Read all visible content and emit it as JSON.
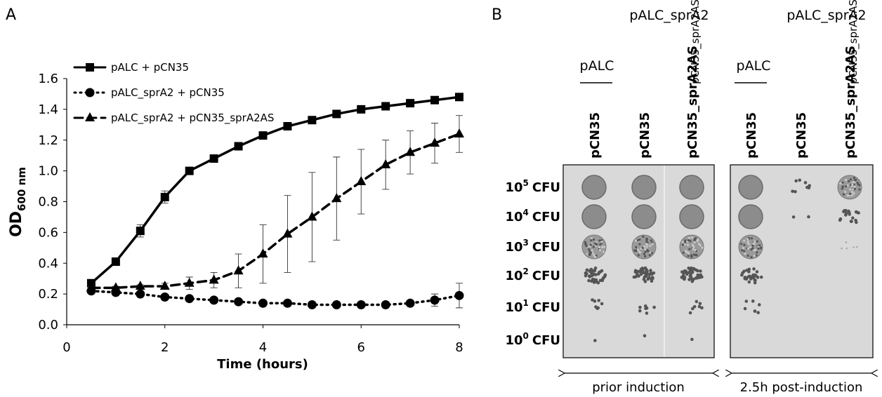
{
  "chart_data": {
    "type": "line",
    "panel_label": "A",
    "xlabel": "Time (hours)",
    "ylabel": {
      "text": "OD",
      "subscript": "600 nm"
    },
    "x": [
      0.5,
      1,
      1.5,
      2,
      2.5,
      3,
      3.5,
      4,
      4.5,
      5,
      5.5,
      6,
      6.5,
      7,
      7.5,
      8
    ],
    "xlim": [
      0,
      8
    ],
    "xticks": [
      0,
      2,
      4,
      6,
      8
    ],
    "ylim": [
      0,
      1.6
    ],
    "yticks": [
      {
        "value": 0,
        "label": "0.0"
      },
      0.2,
      0.4,
      0.6,
      0.8,
      {
        "value": 1,
        "label": "1.0"
      },
      1.2,
      1.4,
      1.6
    ],
    "series": [
      {
        "name": "pALC + pCN35",
        "color": "#000000",
        "line_style": "solid",
        "marker": "square",
        "values": [
          0.27,
          0.41,
          0.61,
          0.83,
          1.0,
          1.08,
          1.16,
          1.23,
          1.29,
          1.33,
          1.37,
          1.4,
          1.42,
          1.44,
          1.46,
          1.48
        ],
        "errors": [
          0.02,
          0.02,
          0.04,
          0.04,
          0.01,
          0.02,
          0.01,
          0.01,
          0.01,
          0.01,
          0.01,
          0.01,
          0.01,
          0.01,
          0.01,
          0.01
        ]
      },
      {
        "name": "pALC_sprA2 + pCN35",
        "color": "#000000",
        "line_style": "dotted",
        "marker": "circle",
        "values": [
          0.22,
          0.21,
          0.2,
          0.18,
          0.17,
          0.16,
          0.15,
          0.14,
          0.14,
          0.13,
          0.13,
          0.13,
          0.13,
          0.14,
          0.16,
          0.19
        ],
        "errors": [
          0.01,
          0.01,
          0.01,
          0.01,
          0.01,
          0.01,
          0.01,
          0.01,
          0.01,
          0.01,
          0.01,
          0.01,
          0.01,
          0.01,
          0.04,
          0.08
        ]
      },
      {
        "name": "pALC_sprA2 + pCN35_sprA2AS",
        "color": "#000000",
        "line_style": "dashed",
        "marker": "triangle",
        "values": [
          0.24,
          0.24,
          0.25,
          0.25,
          0.27,
          0.29,
          0.35,
          0.46,
          0.59,
          0.7,
          0.82,
          0.93,
          1.04,
          1.12,
          1.18,
          1.24
        ],
        "errors": [
          0.01,
          0.01,
          0.01,
          0.02,
          0.04,
          0.05,
          0.11,
          0.19,
          0.25,
          0.29,
          0.27,
          0.21,
          0.16,
          0.14,
          0.13,
          0.12
        ]
      }
    ]
  },
  "panel_b": {
    "label": "B",
    "row_labels": [
      {
        "base": "10",
        "exponent": "5",
        "unit": "CFU"
      },
      {
        "base": "10",
        "exponent": "4",
        "unit": "CFU"
      },
      {
        "base": "10",
        "exponent": "3",
        "unit": "CFU"
      },
      {
        "base": "10",
        "exponent": "2",
        "unit": "CFU"
      },
      {
        "base": "10",
        "exponent": "1",
        "unit": "CFU"
      },
      {
        "base": "10",
        "exponent": "0",
        "unit": "CFU"
      }
    ],
    "plates": [
      {
        "left_header": "pALC",
        "header": "pALC_sprA2",
        "sub_header": "pCN35_sprA2AS",
        "columns": [
          "pCN35",
          "pCN35",
          "pCN35_sprA2AS"
        ],
        "caption": "prior induction"
      },
      {
        "left_header": "pALC",
        "header": "pALC_sprA2",
        "sub_header": "pCN35_sprA2AS",
        "columns": [
          "pCN35",
          "pCN35",
          "pCN35_sprA2AS"
        ],
        "caption": "2.5h post-induction"
      }
    ]
  }
}
